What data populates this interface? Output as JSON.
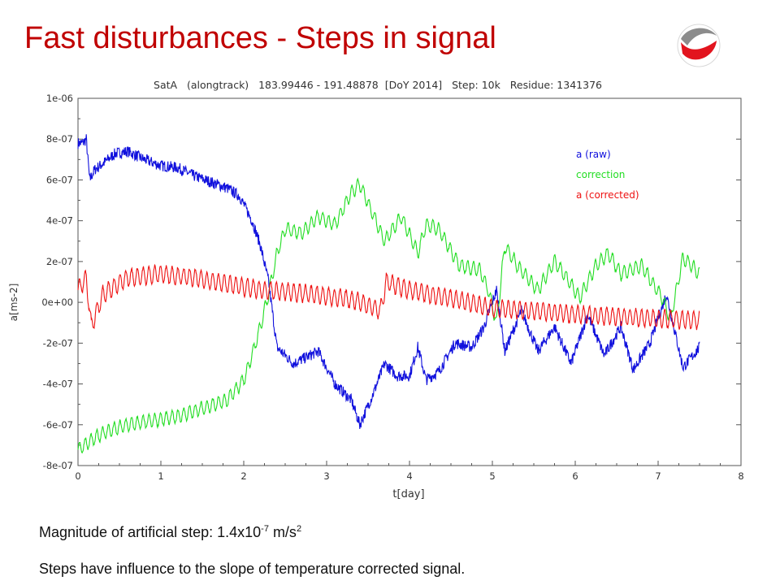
{
  "slide": {
    "title": "Fast disturbances - Steps in signal",
    "caption1": {
      "prefix": "Magnitude of artificial step: 1.4x10",
      "exp": "-7",
      "mid": " m/s",
      "unit_exp": "2"
    },
    "caption2": "Steps have influence to the slope of temperature corrected signal."
  },
  "logo": {
    "icon": "swirl-logo-icon",
    "color_red": "#e2141e",
    "color_grey": "#8c8c8c"
  },
  "chart_data": {
    "type": "line",
    "title": "SatA   (alongtrack)   183.99446 - 191.48878  [DoY 2014]   Step: 10k   Residue: 1341376",
    "xlabel": "t[day]",
    "ylabel": "a[ms-2]",
    "xlim": [
      0,
      8
    ],
    "ylim": [
      -8e-07,
      1e-06
    ],
    "xticks": [
      "0",
      "1",
      "2",
      "3",
      "4",
      "5",
      "6",
      "7",
      "8"
    ],
    "yticks": [
      "1e-06",
      "8e-07",
      "6e-07",
      "4e-07",
      "2e-07",
      "0e+00",
      "-2e-07",
      "-4e-07",
      "-6e-07",
      "-8e-07"
    ],
    "legend_position": "top-right",
    "grid": false,
    "series": [
      {
        "name": "a (raw)",
        "color": "#1010dd",
        "x": [
          0,
          0.05,
          0.08,
          0.1,
          0.14,
          0.2,
          0.3,
          0.45,
          0.6,
          0.8,
          1.0,
          1.2,
          1.4,
          1.6,
          1.8,
          1.95,
          2.1,
          2.2,
          2.3,
          2.4,
          2.6,
          2.9,
          3.1,
          3.3,
          3.4,
          3.55,
          3.7,
          3.85,
          4.0,
          4.1,
          4.2,
          4.35,
          4.55,
          4.75,
          4.9,
          5.05,
          5.15,
          5.35,
          5.55,
          5.75,
          5.95,
          6.15,
          6.35,
          6.55,
          6.7,
          6.9,
          7.1,
          7.3,
          7.5
        ],
        "y": [
          7.8e-07,
          7.8e-07,
          7.9e-07,
          8e-07,
          6e-07,
          6.5e-07,
          6.8e-07,
          7.3e-07,
          7.4e-07,
          7e-07,
          6.7e-07,
          6.6e-07,
          6.2e-07,
          5.9e-07,
          5.6e-07,
          5.2e-07,
          4e-07,
          2.8e-07,
          1e-07,
          -2.2e-07,
          -3e-07,
          -2.4e-07,
          -4e-07,
          -4.8e-07,
          -6e-07,
          -4.6e-07,
          -3e-07,
          -3.6e-07,
          -3.6e-07,
          -2.2e-07,
          -3.8e-07,
          -3.4e-07,
          -2e-07,
          -2.2e-07,
          -1.2e-07,
          6e-08,
          -2.4e-07,
          -4e-08,
          -2.4e-07,
          -1.2e-07,
          -3e-07,
          -6e-08,
          -2.6e-07,
          -1.2e-07,
          -3.3e-07,
          -2e-07,
          4e-08,
          -3.2e-07,
          -2.2e-07
        ]
      },
      {
        "name": "correction",
        "color": "#22dd22",
        "x": [
          0,
          0.3,
          0.6,
          0.9,
          1.2,
          1.5,
          1.8,
          2.0,
          2.1,
          2.2,
          2.3,
          2.4,
          2.5,
          2.7,
          2.9,
          3.1,
          3.3,
          3.4,
          3.55,
          3.7,
          3.9,
          4.1,
          4.2,
          4.35,
          4.6,
          4.85,
          4.95,
          5.05,
          5.15,
          5.3,
          5.55,
          5.75,
          5.9,
          6.05,
          6.25,
          6.4,
          6.55,
          6.8,
          7.05,
          7.15,
          7.3,
          7.5
        ],
        "y": [
          -7.2e-07,
          -6.4e-07,
          -6e-07,
          -5.8e-07,
          -5.6e-07,
          -5.2e-07,
          -4.8e-07,
          -3.8e-07,
          -2.6e-07,
          -1.2e-07,
          4e-08,
          2.4e-07,
          3.6e-07,
          3.4e-07,
          4.2e-07,
          3.8e-07,
          5.4e-07,
          5.8e-07,
          4.4e-07,
          3e-07,
          4.2e-07,
          2.4e-07,
          3.8e-07,
          3.6e-07,
          1.8e-07,
          1.6e-07,
          6e-08,
          -1e-07,
          2.8e-07,
          1.8e-07,
          6e-08,
          2e-07,
          1.2e-07,
          2e-08,
          1.8e-07,
          2.4e-07,
          1.4e-07,
          1.8e-07,
          2e-08,
          -8e-08,
          2.2e-07,
          1.4e-07
        ]
      },
      {
        "name": "a (corrected)",
        "color": "#ee1111",
        "x": [
          0,
          0.1,
          0.14,
          0.16,
          0.3,
          0.6,
          1.0,
          1.4,
          1.8,
          2.2,
          2.6,
          3.0,
          3.35,
          3.65,
          3.7,
          3.72,
          4.0,
          4.5,
          5.0,
          5.5,
          6.0,
          6.5,
          7.0,
          7.5
        ],
        "y": [
          6e-08,
          1.2e-07,
          -4e-08,
          -1.2e-07,
          4e-08,
          1.2e-07,
          1.4e-07,
          1.2e-07,
          9e-08,
          6e-08,
          5e-08,
          3e-08,
          1e-08,
          -4e-08,
          6e-08,
          1e-07,
          6e-08,
          2e-08,
          -3e-08,
          -4e-08,
          -6e-08,
          -7e-08,
          -8e-08,
          -9e-08
        ]
      }
    ]
  }
}
